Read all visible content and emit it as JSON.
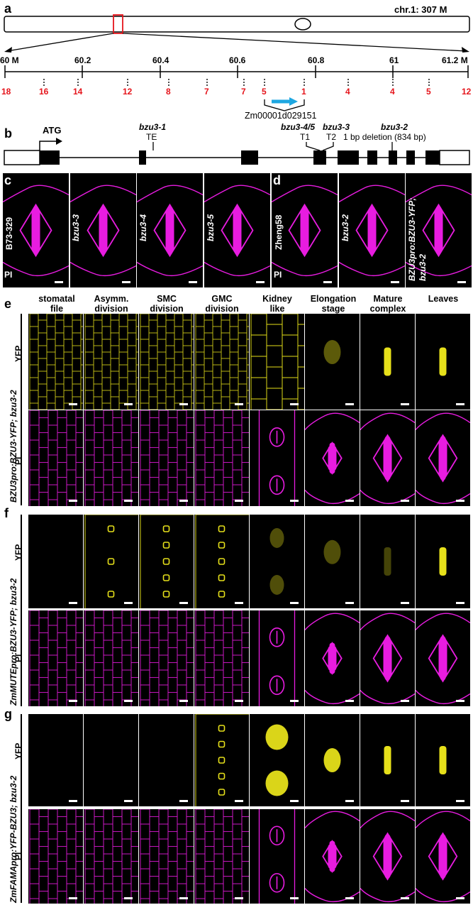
{
  "panel_labels": {
    "a": "a",
    "b": "b",
    "c": "c",
    "d": "d",
    "e": "e",
    "f": "f",
    "g": "g"
  },
  "panel_a": {
    "chromosome_label": "chr.1: 307 M",
    "ruler_ticks": [
      "60 M",
      "60.2",
      "60.4",
      "60.6",
      "60.8",
      "61",
      "61.2 M"
    ],
    "marker_counts": [
      "18",
      "16",
      "14",
      "12",
      "8",
      "7",
      "7",
      "5",
      "1",
      "4",
      "4",
      "5",
      "12"
    ],
    "gene_label": "Zm00001d029151",
    "arrow_color": "#1ea7e1",
    "count_color": "#e5141b"
  },
  "panel_b": {
    "start_label": "ATG",
    "alleles": [
      {
        "name": "bzu3-1",
        "detail": "TE"
      },
      {
        "name": "bzu3-4/5",
        "detail": "T1"
      },
      {
        "name": "bzu3-3",
        "detail": "T2"
      },
      {
        "name": "bzu3-2",
        "detail": "1 bp deletion (834 bp)"
      }
    ]
  },
  "panel_c": {
    "genotypes": [
      "B73-329",
      "bzu3-3",
      "bzu3-4",
      "bzu3-5"
    ],
    "stain": "PI"
  },
  "panel_d": {
    "genotypes": [
      "Zheng58",
      "bzu3-2",
      "BZU3pro:BZU3-YFP;",
      "bzu3-2"
    ],
    "stain": "PI"
  },
  "columns": [
    "stomatal\nfile",
    "Asymm.\ndivision",
    "SMC\ndivision",
    "GMC\ndivision",
    "Kidney\nlike",
    "Elongation\nstage",
    "Mature\ncomplex",
    "Leaves"
  ],
  "rows": [
    {
      "construct": "BZU3pro:BZU3-YFP; bzu3-2",
      "channels": [
        "YFP",
        "PI"
      ]
    },
    {
      "construct": "ZmMUTEpro:BZU3-YFP; bzu3-2",
      "channels": [
        "YFP",
        "PI"
      ]
    },
    {
      "construct": "ZmFAMApro:YFP-BZU3; bzu3-2",
      "channels": [
        "YFP",
        "PI"
      ]
    }
  ],
  "colors": {
    "magenta": "#e81ce0",
    "yellow": "#e6e01a",
    "black": "#000000"
  }
}
